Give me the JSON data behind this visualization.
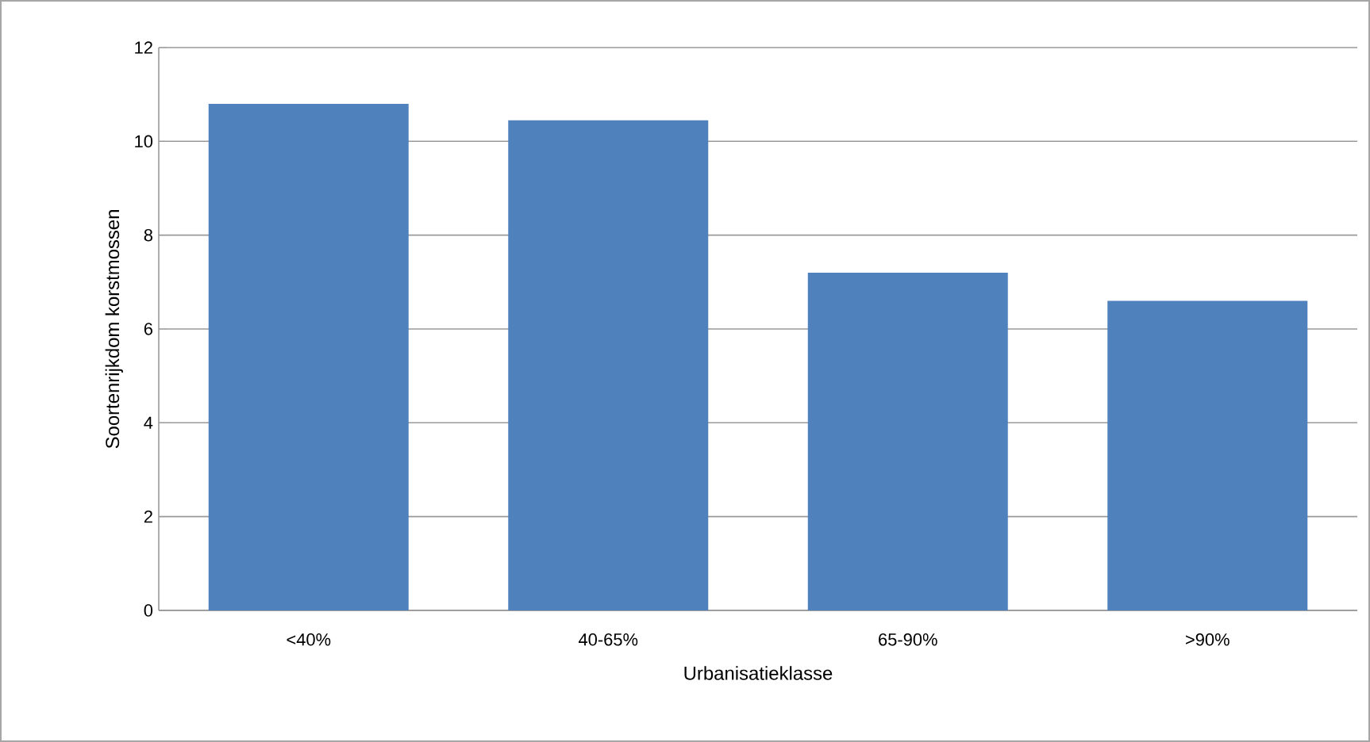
{
  "chart_data": {
    "type": "bar",
    "xlabel": "Urbanisatieklasse",
    "ylabel": "Soortenrijkdom korstmossen",
    "categories": [
      "<40%",
      "40-65%",
      "65-90%",
      ">90%"
    ],
    "values": [
      10.8,
      10.45,
      7.2,
      6.6
    ],
    "color": "#4f81bd",
    "ylim": [
      0,
      12
    ],
    "yticks": [
      0,
      2,
      4,
      6,
      8,
      10,
      12
    ],
    "grid": "y"
  }
}
